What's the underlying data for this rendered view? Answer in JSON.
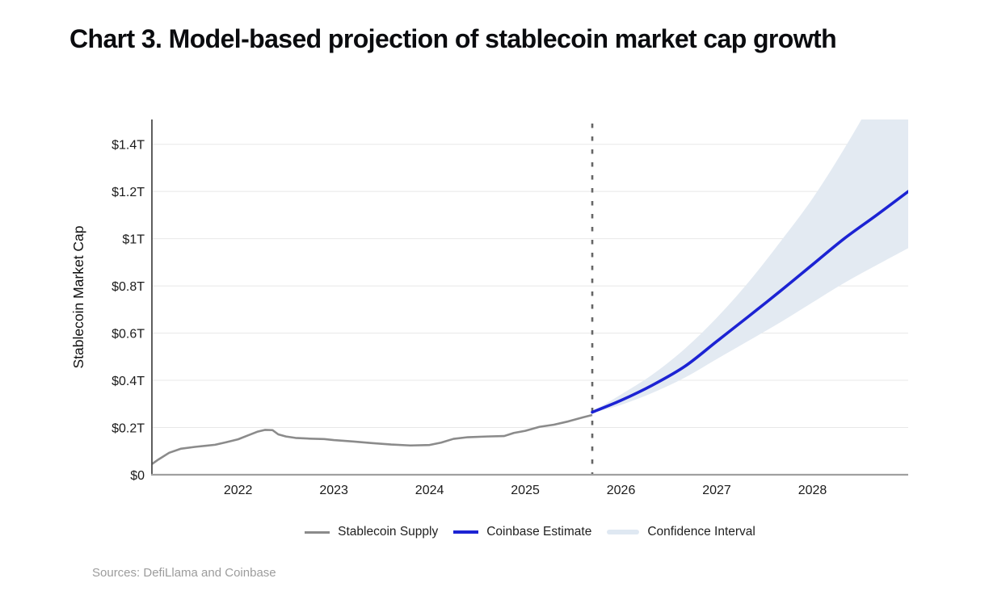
{
  "title": "Chart 3. Model-based projection of stablecoin market cap growth",
  "source": "Sources: DefiLlama and Coinbase",
  "colors": {
    "historical_line": "#8b8b8b",
    "estimate_line": "#1c23d3",
    "confidence_band": "#e3eaf2",
    "legend_band_swatch": "#dfe8f2",
    "divider": "#666666",
    "gridline": "#e8e8e8",
    "axis_left": "#4d4d4d",
    "axis_bottom": "#a0a0a0",
    "title_text": "#0b0c0f",
    "tick_text": "#1b1b1b",
    "source_text": "#9c9c9c"
  },
  "chart_data": {
    "type": "line",
    "title": "Chart 3. Model-based projection of stablecoin market cap growth",
    "xlabel": "",
    "ylabel": "Stablecoin Market Cap",
    "x_range": [
      2021.1,
      2029.0
    ],
    "y_range": [
      0,
      1.505
    ],
    "forecast_start_x": 2025.7,
    "grid": "horizontal",
    "legend_position": "bottom",
    "x_ticks": [
      {
        "value": 2022,
        "label": "2022"
      },
      {
        "value": 2023,
        "label": "2023"
      },
      {
        "value": 2024,
        "label": "2024"
      },
      {
        "value": 2025,
        "label": "2025"
      },
      {
        "value": 2026,
        "label": "2026"
      },
      {
        "value": 2027,
        "label": "2027"
      },
      {
        "value": 2028,
        "label": "2028"
      }
    ],
    "y_ticks": [
      {
        "value": 0,
        "label": "$0"
      },
      {
        "value": 0.2,
        "label": "$0.2T"
      },
      {
        "value": 0.4,
        "label": "$0.4T"
      },
      {
        "value": 0.6,
        "label": "$0.6T"
      },
      {
        "value": 0.8,
        "label": "$0.8T"
      },
      {
        "value": 1.0,
        "label": "$1T"
      },
      {
        "value": 1.2,
        "label": "$1.2T"
      },
      {
        "value": 1.4,
        "label": "$1.4T"
      }
    ],
    "series": [
      {
        "name": "Stablecoin Supply",
        "type": "line",
        "color": "#8b8b8b",
        "units": "trillion USD",
        "points": [
          [
            2021.1,
            0.045
          ],
          [
            2021.17,
            0.065
          ],
          [
            2021.28,
            0.093
          ],
          [
            2021.4,
            0.11
          ],
          [
            2021.55,
            0.118
          ],
          [
            2021.76,
            0.127
          ],
          [
            2021.88,
            0.138
          ],
          [
            2022,
            0.15
          ],
          [
            2022.1,
            0.166
          ],
          [
            2022.2,
            0.182
          ],
          [
            2022.28,
            0.19
          ],
          [
            2022.36,
            0.189
          ],
          [
            2022.42,
            0.171
          ],
          [
            2022.5,
            0.162
          ],
          [
            2022.6,
            0.156
          ],
          [
            2022.75,
            0.153
          ],
          [
            2022.9,
            0.151
          ],
          [
            2023,
            0.147
          ],
          [
            2023.2,
            0.141
          ],
          [
            2023.4,
            0.134
          ],
          [
            2023.6,
            0.128
          ],
          [
            2023.8,
            0.124
          ],
          [
            2024,
            0.126
          ],
          [
            2024.12,
            0.136
          ],
          [
            2024.25,
            0.152
          ],
          [
            2024.4,
            0.159
          ],
          [
            2024.6,
            0.162
          ],
          [
            2024.78,
            0.164
          ],
          [
            2024.88,
            0.177
          ],
          [
            2025,
            0.186
          ],
          [
            2025.15,
            0.203
          ],
          [
            2025.3,
            0.212
          ],
          [
            2025.45,
            0.226
          ],
          [
            2025.6,
            0.243
          ],
          [
            2025.7,
            0.253
          ]
        ]
      },
      {
        "name": "Coinbase Estimate",
        "type": "line",
        "color": "#1c23d3",
        "units": "trillion USD",
        "points": [
          [
            2025.7,
            0.265
          ],
          [
            2026,
            0.315
          ],
          [
            2026.33,
            0.38
          ],
          [
            2026.67,
            0.46
          ],
          [
            2027,
            0.565
          ],
          [
            2027.33,
            0.67
          ],
          [
            2027.67,
            0.78
          ],
          [
            2028,
            0.89
          ],
          [
            2028.33,
            1.0
          ],
          [
            2028.67,
            1.1
          ],
          [
            2029,
            1.2
          ]
        ]
      },
      {
        "name": "Confidence Interval",
        "type": "band",
        "color": "#e3eaf2",
        "units": "trillion USD",
        "upper": [
          [
            2025.7,
            0.268
          ],
          [
            2026,
            0.34
          ],
          [
            2026.33,
            0.425
          ],
          [
            2026.67,
            0.535
          ],
          [
            2027,
            0.665
          ],
          [
            2027.33,
            0.815
          ],
          [
            2027.67,
            0.99
          ],
          [
            2028,
            1.17
          ],
          [
            2028.33,
            1.38
          ],
          [
            2028.67,
            1.62
          ],
          [
            2029,
            1.88
          ]
        ],
        "lower": [
          [
            2025.7,
            0.262
          ],
          [
            2026,
            0.296
          ],
          [
            2026.33,
            0.347
          ],
          [
            2026.67,
            0.412
          ],
          [
            2027,
            0.49
          ],
          [
            2027.33,
            0.567
          ],
          [
            2027.67,
            0.647
          ],
          [
            2028,
            0.73
          ],
          [
            2028.33,
            0.812
          ],
          [
            2028.67,
            0.888
          ],
          [
            2029,
            0.96
          ]
        ]
      }
    ]
  }
}
